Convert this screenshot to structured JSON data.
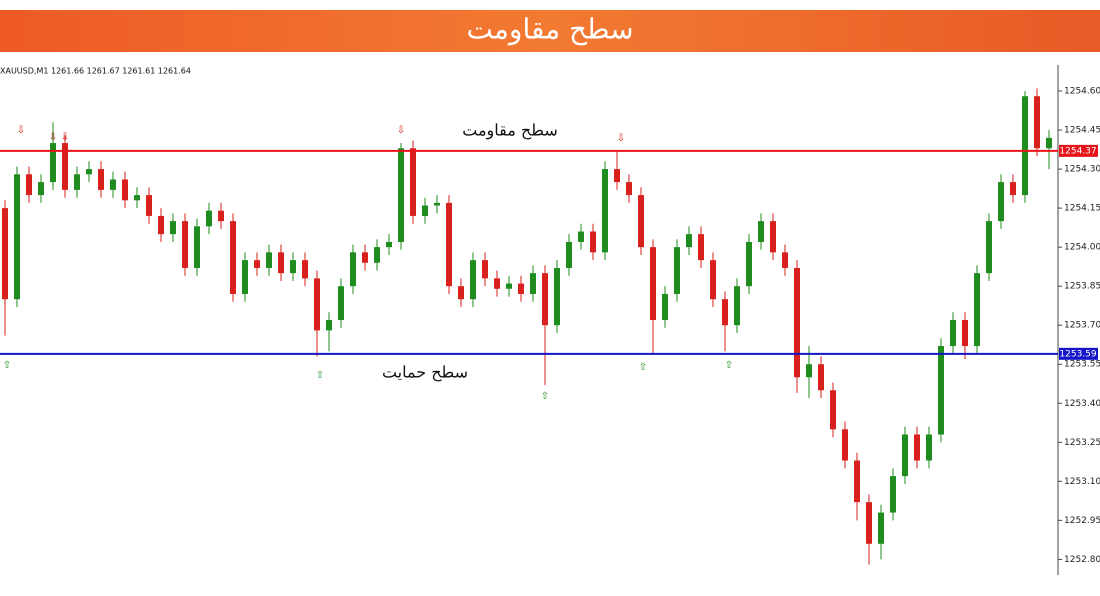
{
  "chart_data": {
    "type": "candlestick",
    "title": "سطح مقاومت",
    "symbol_info": "XAUUSD,M1  1261.66 1261.67 1261.61 1261.64",
    "up_color": "#1e8c1e",
    "down_color": "#d8201c",
    "ylim": [
      1252.74,
      1254.7
    ],
    "yticks": [
      {
        "value": 1254.6,
        "label": "1254.60"
      },
      1254.45,
      {
        "value": 1254.3,
        "label": "1254.30"
      },
      1254.15,
      {
        "value": 1254.0,
        "label": "1254.00"
      },
      1253.85,
      {
        "value": 1253.7,
        "label": "1253.70"
      },
      1253.55,
      {
        "value": 1253.4,
        "label": "1253.40"
      },
      1253.25,
      {
        "value": 1253.1,
        "label": "1253.10"
      },
      1252.95,
      {
        "value": 1252.8,
        "label": "1252.80"
      }
    ],
    "hlines": [
      {
        "value": 1254.37,
        "color": "#e8141c",
        "label": "سطح مقاومت"
      },
      {
        "value": 1253.59,
        "color": "#1414c8",
        "label": "سطح حمایت"
      }
    ],
    "open": [
      1254.15,
      1253.8,
      1254.28,
      1254.2,
      1254.25,
      1254.4,
      1254.22,
      1254.28,
      1254.3,
      1254.22,
      1254.26,
      1254.18,
      1254.2,
      1254.12,
      1254.05,
      1254.1,
      1253.92,
      1254.08,
      1254.14,
      1254.1,
      1253.82,
      1253.95,
      1253.92,
      1253.98,
      1253.9,
      1253.95,
      1253.88,
      1253.68,
      1253.72,
      1253.85,
      1253.98,
      1253.94,
      1254.0,
      1254.02,
      1254.38,
      1254.12,
      1254.16,
      1254.17,
      1253.85,
      1253.8,
      1253.95,
      1253.88,
      1253.84,
      1253.86,
      1253.82,
      1253.9,
      1253.7,
      1253.92,
      1254.02,
      1254.06,
      1253.98,
      1254.3,
      1254.25,
      1254.2,
      1254.0,
      1253.72,
      1253.82,
      1254.0,
      1254.05,
      1253.95,
      1253.8,
      1253.7,
      1253.85,
      1254.02,
      1254.1,
      1253.98,
      1253.92,
      1253.5,
      1253.55,
      1253.45,
      1253.3,
      1253.18,
      1253.02,
      1252.86,
      1252.98,
      1253.12,
      1253.28,
      1253.18,
      1253.28,
      1253.62,
      1253.72,
      1253.62,
      1253.9,
      1254.1,
      1254.25,
      1254.2,
      1254.58,
      1254.38
    ],
    "high": [
      1254.18,
      1254.31,
      1254.31,
      1254.28,
      1254.48,
      1254.43,
      1254.31,
      1254.33,
      1254.33,
      1254.29,
      1254.29,
      1254.23,
      1254.23,
      1254.15,
      1254.13,
      1254.13,
      1254.11,
      1254.17,
      1254.17,
      1254.13,
      1253.98,
      1253.98,
      1254.01,
      1254.01,
      1253.98,
      1253.98,
      1253.91,
      1253.75,
      1253.88,
      1254.01,
      1254.01,
      1254.03,
      1254.05,
      1254.4,
      1254.41,
      1254.19,
      1254.2,
      1254.2,
      1253.88,
      1253.98,
      1253.98,
      1253.91,
      1253.89,
      1253.89,
      1253.93,
      1253.93,
      1253.95,
      1254.05,
      1254.09,
      1254.09,
      1254.33,
      1254.37,
      1254.28,
      1254.23,
      1254.03,
      1253.85,
      1254.03,
      1254.08,
      1254.08,
      1253.98,
      1253.83,
      1253.88,
      1254.05,
      1254.13,
      1254.13,
      1254.01,
      1253.95,
      1253.62,
      1253.58,
      1253.48,
      1253.33,
      1253.21,
      1253.05,
      1253.01,
      1253.15,
      1253.31,
      1253.31,
      1253.31,
      1253.65,
      1253.75,
      1253.75,
      1253.93,
      1254.13,
      1254.28,
      1254.28,
      1254.6,
      1254.61,
      1254.45
    ],
    "low": [
      1253.66,
      1253.77,
      1254.17,
      1254.17,
      1254.22,
      1254.19,
      1254.19,
      1254.25,
      1254.19,
      1254.19,
      1254.15,
      1254.15,
      1254.09,
      1254.02,
      1254.02,
      1253.89,
      1253.89,
      1254.05,
      1254.07,
      1253.79,
      1253.79,
      1253.89,
      1253.89,
      1253.87,
      1253.87,
      1253.85,
      1253.58,
      1253.6,
      1253.69,
      1253.82,
      1253.91,
      1253.91,
      1253.97,
      1253.99,
      1254.09,
      1254.09,
      1254.13,
      1253.82,
      1253.77,
      1253.77,
      1253.85,
      1253.81,
      1253.81,
      1253.79,
      1253.79,
      1253.47,
      1253.67,
      1253.89,
      1253.99,
      1253.95,
      1253.95,
      1254.22,
      1254.17,
      1253.97,
      1253.59,
      1253.69,
      1253.79,
      1253.97,
      1253.92,
      1253.77,
      1253.6,
      1253.67,
      1253.82,
      1253.99,
      1253.95,
      1253.89,
      1253.44,
      1253.42,
      1253.42,
      1253.27,
      1253.15,
      1252.95,
      1252.78,
      1252.8,
      1252.95,
      1253.09,
      1253.15,
      1253.15,
      1253.25,
      1253.59,
      1253.57,
      1253.59,
      1253.87,
      1254.07,
      1254.17,
      1254.17,
      1254.35,
      1254.3
    ],
    "close": [
      1253.8,
      1254.28,
      1254.2,
      1254.25,
      1254.4,
      1254.22,
      1254.28,
      1254.3,
      1254.22,
      1254.26,
      1254.18,
      1254.2,
      1254.12,
      1254.05,
      1254.1,
      1253.92,
      1254.08,
      1254.14,
      1254.1,
      1253.82,
      1253.95,
      1253.92,
      1253.98,
      1253.9,
      1253.95,
      1253.88,
      1253.68,
      1253.72,
      1253.85,
      1253.98,
      1253.94,
      1254.0,
      1254.02,
      1254.38,
      1254.12,
      1254.16,
      1254.17,
      1253.85,
      1253.8,
      1253.95,
      1253.88,
      1253.84,
      1253.86,
      1253.82,
      1253.9,
      1253.7,
      1253.92,
      1254.02,
      1254.06,
      1253.98,
      1254.3,
      1254.25,
      1254.2,
      1254.0,
      1253.72,
      1253.82,
      1254.0,
      1254.05,
      1253.95,
      1253.8,
      1253.7,
      1253.85,
      1254.02,
      1254.1,
      1253.98,
      1253.92,
      1253.5,
      1253.55,
      1253.45,
      1253.3,
      1253.18,
      1253.02,
      1252.86,
      1252.98,
      1253.12,
      1253.28,
      1253.18,
      1253.28,
      1253.62,
      1253.72,
      1253.62,
      1253.9,
      1254.1,
      1254.25,
      1254.2,
      1254.58,
      1254.38,
      1254.42
    ]
  }
}
